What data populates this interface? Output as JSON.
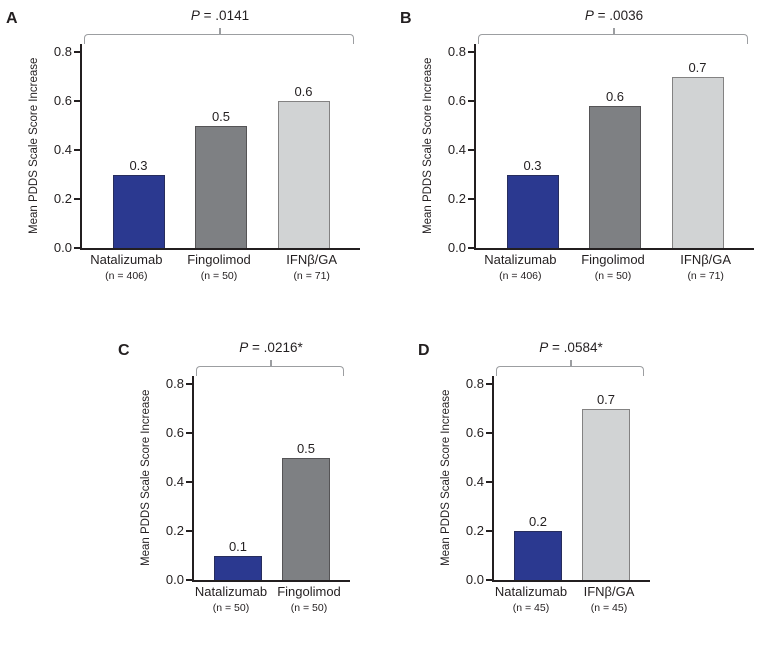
{
  "chart_data": [
    {
      "type": "bar",
      "panel_label": "A",
      "p_italic": "P",
      "p_rest": " = .0141",
      "ylabel": "Mean PDDS Scale Score Increase",
      "ylim": [
        0,
        0.8
      ],
      "yticks": [
        "0.0",
        "0.2",
        "0.4",
        "0.6",
        "0.8"
      ],
      "categories": [
        "Natalizumab",
        "Fingolimod",
        "IFNβ/GA"
      ],
      "n_labels": [
        "(n = 406)",
        "(n = 50)",
        "(n = 71)"
      ],
      "values": [
        0.3,
        0.5,
        0.6
      ],
      "value_labels": [
        "0.3",
        "0.5",
        "0.6"
      ],
      "bar_colors": [
        "#2b3990",
        "#7e8083",
        "#d1d3d4"
      ],
      "axis_color": "#231f20",
      "bracket_color": "#9c9ea1",
      "grid": false,
      "legend": "none"
    },
    {
      "type": "bar",
      "panel_label": "B",
      "p_italic": "P",
      "p_rest": " = .0036",
      "ylabel": "Mean PDDS Scale Score Increase",
      "ylim": [
        0,
        0.8
      ],
      "yticks": [
        "0.0",
        "0.2",
        "0.4",
        "0.6",
        "0.8"
      ],
      "categories": [
        "Natalizumab",
        "Fingolimod",
        "IFNβ/GA"
      ],
      "n_labels": [
        "(n = 406)",
        "(n = 50)",
        "(n = 71)"
      ],
      "values": [
        0.3,
        0.58,
        0.7
      ],
      "value_labels": [
        "0.3",
        "0.6",
        "0.7"
      ],
      "bar_colors": [
        "#2b3990",
        "#7e8083",
        "#d1d3d4"
      ],
      "axis_color": "#231f20",
      "bracket_color": "#9c9ea1",
      "grid": false,
      "legend": "none"
    },
    {
      "type": "bar",
      "panel_label": "C",
      "p_italic": "P",
      "p_rest": " = .0216*",
      "ylabel": "Mean PDDS Scale Score Increase",
      "ylim": [
        0,
        0.8
      ],
      "yticks": [
        "0.0",
        "0.2",
        "0.4",
        "0.6",
        "0.8"
      ],
      "categories": [
        "Natalizumab",
        "Fingolimod"
      ],
      "n_labels": [
        "(n = 50)",
        "(n = 50)"
      ],
      "values": [
        0.1,
        0.5
      ],
      "value_labels": [
        "0.1",
        "0.5"
      ],
      "bar_colors": [
        "#2b3990",
        "#7e8083"
      ],
      "axis_color": "#231f20",
      "bracket_color": "#9c9ea1",
      "grid": false,
      "legend": "none"
    },
    {
      "type": "bar",
      "panel_label": "D",
      "p_italic": "P",
      "p_rest": " = .0584*",
      "ylabel": "Mean PDDS Scale Score Increase",
      "ylim": [
        0,
        0.8
      ],
      "yticks": [
        "0.0",
        "0.2",
        "0.4",
        "0.6",
        "0.8"
      ],
      "categories": [
        "Natalizumab",
        "IFNβ/GA"
      ],
      "n_labels": [
        "(n = 45)",
        "(n = 45)"
      ],
      "values": [
        0.2,
        0.7
      ],
      "value_labels": [
        "0.2",
        "0.7"
      ],
      "bar_colors": [
        "#2b3990",
        "#d1d3d4"
      ],
      "axis_color": "#231f20",
      "bracket_color": "#9c9ea1",
      "grid": false,
      "legend": "none"
    }
  ]
}
